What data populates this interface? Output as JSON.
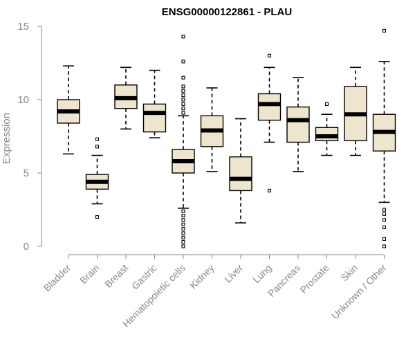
{
  "chart_data": {
    "type": "box",
    "title": "ENSG00000122861 - PLAU",
    "ylabel": "Expression",
    "ylim": [
      0,
      15
    ],
    "yticks": [
      "0",
      "5",
      "10",
      "15"
    ],
    "box_fill": "#ede5cc",
    "categories": [
      "Bladder",
      "Brain",
      "Breast",
      "Gastric",
      "Hematopoietic cells",
      "Kidney",
      "Liver",
      "Lung",
      "Pancreas",
      "Prostate",
      "Skin",
      "Unknown / Other"
    ],
    "boxes": [
      {
        "category": "Bladder",
        "whisker_low": 6.3,
        "q1": 8.4,
        "median": 9.2,
        "q3": 10.0,
        "whisker_high": 12.3,
        "outliers": []
      },
      {
        "category": "Brain",
        "whisker_low": 2.9,
        "q1": 3.9,
        "median": 4.4,
        "q3": 4.9,
        "whisker_high": 6.2,
        "outliers": [
          2.0,
          6.8,
          7.3
        ]
      },
      {
        "category": "Breast",
        "whisker_low": 8.0,
        "q1": 9.4,
        "median": 10.1,
        "q3": 11.0,
        "whisker_high": 12.2,
        "outliers": []
      },
      {
        "category": "Gastric",
        "whisker_low": 7.4,
        "q1": 7.8,
        "median": 9.1,
        "q3": 9.7,
        "whisker_high": 12.0,
        "outliers": []
      },
      {
        "category": "Hematopoietic cells",
        "whisker_low": 2.6,
        "q1": 5.0,
        "median": 5.8,
        "q3": 6.6,
        "whisker_high": 8.9,
        "outliers": [
          0.0,
          0.3,
          0.6,
          0.9,
          1.2,
          1.5,
          1.8,
          2.1,
          2.4,
          9.1,
          9.4,
          9.7,
          10.0,
          10.3,
          10.6,
          10.9,
          11.5,
          12.6,
          14.3
        ]
      },
      {
        "category": "Kidney",
        "whisker_low": 5.1,
        "q1": 6.8,
        "median": 7.9,
        "q3": 8.9,
        "whisker_high": 10.8,
        "outliers": []
      },
      {
        "category": "Liver",
        "whisker_low": 1.6,
        "q1": 3.8,
        "median": 4.6,
        "q3": 6.1,
        "whisker_high": 8.7,
        "outliers": []
      },
      {
        "category": "Lung",
        "whisker_low": 7.1,
        "q1": 8.6,
        "median": 9.7,
        "q3": 10.4,
        "whisker_high": 12.2,
        "outliers": [
          3.8,
          13.0
        ]
      },
      {
        "category": "Pancreas",
        "whisker_low": 5.1,
        "q1": 7.1,
        "median": 8.6,
        "q3": 9.5,
        "whisker_high": 11.5,
        "outliers": []
      },
      {
        "category": "Prostate",
        "whisker_low": 6.2,
        "q1": 7.2,
        "median": 7.5,
        "q3": 8.1,
        "whisker_high": 9.0,
        "outliers": [
          9.7
        ]
      },
      {
        "category": "Skin",
        "whisker_low": 6.2,
        "q1": 7.2,
        "median": 9.0,
        "q3": 10.9,
        "whisker_high": 12.2,
        "outliers": []
      },
      {
        "category": "Unknown / Other",
        "whisker_low": 3.0,
        "q1": 6.5,
        "median": 7.8,
        "q3": 9.0,
        "whisker_high": 12.6,
        "outliers": [
          0.0,
          0.5,
          1.3,
          1.8,
          2.2,
          2.5,
          14.7
        ]
      }
    ]
  }
}
